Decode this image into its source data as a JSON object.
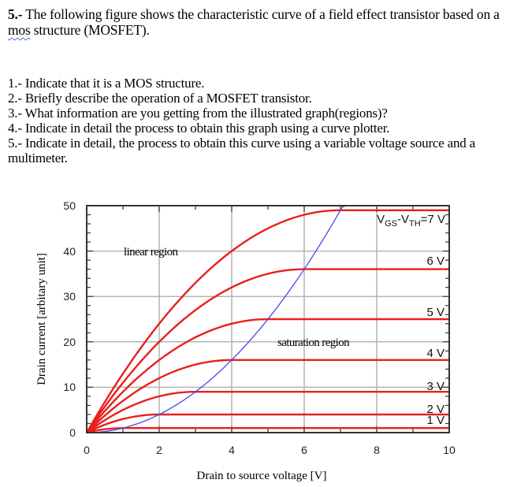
{
  "question": {
    "number": "5.-",
    "text_before": " The following figure shows the characteristic curve of a field effect transistor based on a ",
    "misspelled_word": "mos",
    "text_after": " structure (MOSFET)."
  },
  "subquestions": [
    "1.- Indicate that it is a MOS structure.",
    "2.- Briefly describe the operation of a MOSFET transistor.",
    "3.- What information are you getting from the illustrated graph(regions)?",
    "4.- Indicate in detail the process to obtain this graph using a curve plotter.",
    "5.- Indicate in detail, the process to obtain this curve using a variable voltage source and a multimeter."
  ],
  "chart": {
    "xlabel": "Drain to source voltage [V]",
    "ylabel": "Drain current [arbitary unit]",
    "region_labels": {
      "linear": "linear region",
      "saturation": "saturation region"
    },
    "curve_labels": [
      "1 V",
      "2 V",
      "3 V",
      "4 V",
      "5 V",
      "6 V",
      "7 V"
    ],
    "top_label_prefix": "V",
    "top_label_sub1": "GS",
    "top_label_mid": "-V",
    "top_label_sub2": "TH",
    "top_label_suffix": "=7 V"
  },
  "chart_data": {
    "type": "line",
    "title": "",
    "xlabel": "Drain to source voltage [V]",
    "ylabel": "Drain current [arbitary unit]",
    "xlim": [
      0,
      10
    ],
    "ylim": [
      0,
      50
    ],
    "xticks": [
      0,
      2,
      4,
      6,
      8,
      10
    ],
    "yticks": [
      0,
      10,
      20,
      30,
      40,
      50
    ],
    "grid": true,
    "series": [
      {
        "name": "VGS-VTH=1 V",
        "color": "#e8201c",
        "saturation_current": 1,
        "pinch_off_vds": 1
      },
      {
        "name": "VGS-VTH=2 V",
        "color": "#e8201c",
        "saturation_current": 4,
        "pinch_off_vds": 2
      },
      {
        "name": "VGS-VTH=3 V",
        "color": "#e8201c",
        "saturation_current": 9,
        "pinch_off_vds": 3
      },
      {
        "name": "VGS-VTH=4 V",
        "color": "#e8201c",
        "saturation_current": 16,
        "pinch_off_vds": 4
      },
      {
        "name": "VGS-VTH=5 V",
        "color": "#e8201c",
        "saturation_current": 25,
        "pinch_off_vds": 5
      },
      {
        "name": "VGS-VTH=6 V",
        "color": "#e8201c",
        "saturation_current": 36,
        "pinch_off_vds": 6
      },
      {
        "name": "VGS-VTH=7 V",
        "color": "#e8201c",
        "saturation_current": 49,
        "pinch_off_vds": 7
      },
      {
        "name": "VDS = VGS-VTH boundary (ID = VDS^2)",
        "color": "#4a4ae8",
        "x": [
          0,
          1,
          2,
          3,
          4,
          5,
          6,
          7
        ],
        "y": [
          0,
          1,
          4,
          9,
          16,
          25,
          36,
          49
        ]
      }
    ],
    "annotations": [
      "linear region",
      "saturation region",
      "VGS-VTH=7 V",
      "6 V",
      "5 V",
      "4 V",
      "3 V",
      "2 V",
      "1 V"
    ]
  }
}
